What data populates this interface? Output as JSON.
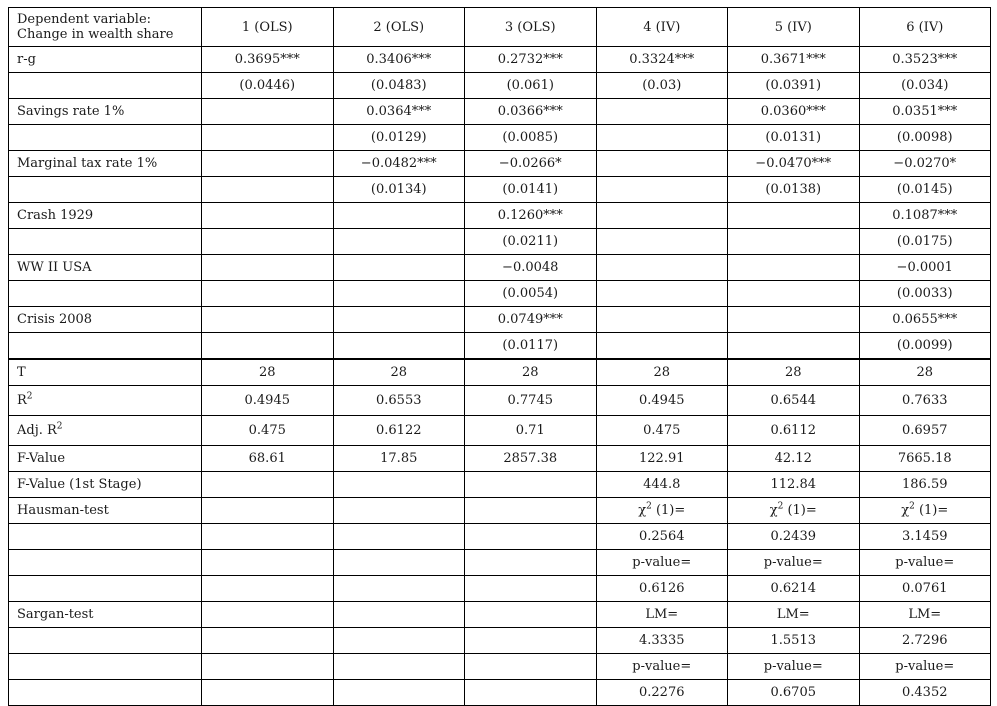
{
  "header": {
    "dep_var_line1": "Dependent variable:",
    "dep_var_line2": "Change in wealth share",
    "columns": [
      "1 (OLS)",
      "2 (OLS)",
      "3 (OLS)",
      "4 (IV)",
      "5 (IV)",
      "6 (IV)"
    ]
  },
  "coef_rows": [
    {
      "label": "r-g",
      "values": [
        "0.3695***",
        "0.3406***",
        "0.2732***",
        "0.3324***",
        "0.3671***",
        "0.3523***"
      ],
      "se": [
        "(0.0446)",
        "(0.0483)",
        "(0.061)",
        "(0.03)",
        "(0.0391)",
        "(0.034)"
      ]
    },
    {
      "label": "Savings rate 1%",
      "values": [
        "",
        "0.0364***",
        "0.0366***",
        "",
        "0.0360***",
        "0.0351***"
      ],
      "se": [
        "",
        "(0.0129)",
        "(0.0085)",
        "",
        "(0.0131)",
        "(0.0098)"
      ]
    },
    {
      "label": "Marginal tax rate 1%",
      "values": [
        "",
        "-0.0482***",
        "-0.0266*",
        "",
        "-0.0470***",
        "-0.0270*"
      ],
      "se": [
        "",
        "(0.0134)",
        "(0.0141)",
        "",
        "(0.0138)",
        "(0.0145)"
      ]
    },
    {
      "label": "Crash 1929",
      "values": [
        "",
        "",
        "0.1260***",
        "",
        "",
        "0.1087***"
      ],
      "se": [
        "",
        "",
        "(0.0211)",
        "",
        "",
        "(0.0175)"
      ]
    },
    {
      "label": "WW II USA",
      "values": [
        "",
        "",
        "-0.0048",
        "",
        "",
        "-0.0001"
      ],
      "se": [
        "",
        "",
        "(0.0054)",
        "",
        "",
        "(0.0033)"
      ]
    },
    {
      "label": "Crisis 2008",
      "values": [
        "",
        "",
        "0.0749***",
        "",
        "",
        "0.0655***"
      ],
      "se": [
        "",
        "",
        "(0.0117)",
        "",
        "",
        "(0.0099)"
      ]
    }
  ],
  "stats": {
    "T": {
      "label": "T",
      "values": [
        "28",
        "28",
        "28",
        "28",
        "28",
        "28"
      ]
    },
    "R2": {
      "label": "R",
      "sup": "2",
      "values": [
        "0.4945",
        "0.6553",
        "0.7745",
        "0.4945",
        "0.6544",
        "0.7633"
      ]
    },
    "AdjR2": {
      "label": "Adj. R",
      "sup": "2",
      "values": [
        "0.475",
        "0.6122",
        "0.71",
        "0.475",
        "0.6112",
        "0.6957"
      ]
    },
    "F": {
      "label": "F-Value",
      "values": [
        "68.61",
        "17.85",
        "2857.38",
        "122.91",
        "42.12",
        "7665.18"
      ]
    },
    "F1": {
      "label": "F-Value (1st Stage)",
      "values": [
        "",
        "",
        "",
        "444.8",
        "112.84",
        "186.59"
      ]
    }
  },
  "tests": {
    "hausman": {
      "label": "Hausman-test",
      "chi_prefix": "χ",
      "chi_sup": "2",
      "chi_suffix": " (1)=",
      "chi_values": [
        "0.2564",
        "0.2439",
        "3.1459"
      ],
      "p_label": "p-value=",
      "p_values": [
        "0.6126",
        "0.6214",
        "0.0761"
      ]
    },
    "sargan": {
      "label": "Sargan-test",
      "lm_label": "LM=",
      "lm_values": [
        "4.3335",
        "1.5513",
        "2.7296"
      ],
      "p_label": "p-value=",
      "p_values": [
        "0.2276",
        "0.6705",
        "0.4352"
      ]
    }
  }
}
